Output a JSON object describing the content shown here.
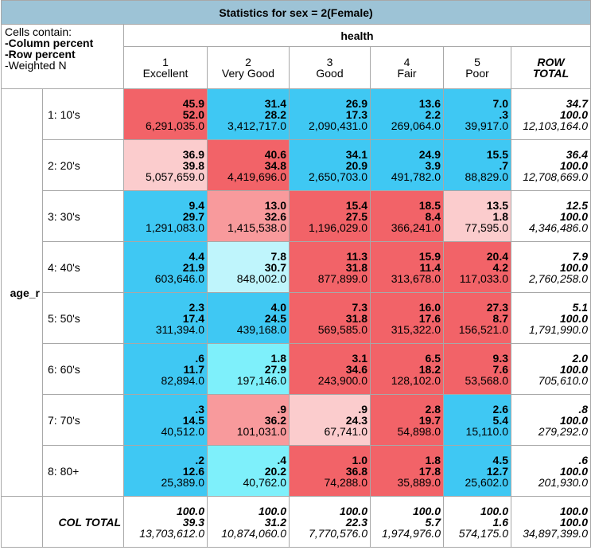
{
  "title": "Statistics for sex = 2(Female)",
  "legend": {
    "line1": "Cells contain:",
    "line2": "-Column percent",
    "line3": "-Row percent",
    "line4": "-Weighted N"
  },
  "col_var": "health",
  "row_var": "age_r",
  "columns": [
    {
      "num": "1",
      "label": "Excellent"
    },
    {
      "num": "2",
      "label": "Very Good"
    },
    {
      "num": "3",
      "label": "Good"
    },
    {
      "num": "4",
      "label": "Fair"
    },
    {
      "num": "5",
      "label": "Poor"
    }
  ],
  "row_total_header": {
    "line1": "ROW",
    "line2": "TOTAL"
  },
  "col_total_label": "COL TOTAL",
  "colors": {
    "blue": "#3fc8f3",
    "red": "#f26368",
    "lightred": "#fbcccd",
    "midred": "#f89a9c",
    "lightcyan": "#bff5fc",
    "cyan": "#7ef0fb",
    "white": "#ffffff"
  },
  "rows": [
    {
      "label": "1: 10's",
      "cells": [
        {
          "c": "45.9",
          "r": "52.0",
          "n": "6,291,035.0",
          "color": "red"
        },
        {
          "c": "31.4",
          "r": "28.2",
          "n": "3,412,717.0",
          "color": "blue"
        },
        {
          "c": "26.9",
          "r": "17.3",
          "n": "2,090,431.0",
          "color": "blue"
        },
        {
          "c": "13.6",
          "r": "2.2",
          "n": "269,064.0",
          "color": "blue"
        },
        {
          "c": "7.0",
          "r": ".3",
          "n": "39,917.0",
          "color": "blue"
        }
      ],
      "total": {
        "c": "34.7",
        "r": "100.0",
        "n": "12,103,164.0"
      }
    },
    {
      "label": "2: 20's",
      "cells": [
        {
          "c": "36.9",
          "r": "39.8",
          "n": "5,057,659.0",
          "color": "lightred"
        },
        {
          "c": "40.6",
          "r": "34.8",
          "n": "4,419,696.0",
          "color": "red"
        },
        {
          "c": "34.1",
          "r": "20.9",
          "n": "2,650,703.0",
          "color": "blue"
        },
        {
          "c": "24.9",
          "r": "3.9",
          "n": "491,782.0",
          "color": "blue"
        },
        {
          "c": "15.5",
          "r": ".7",
          "n": "88,829.0",
          "color": "blue"
        }
      ],
      "total": {
        "c": "36.4",
        "r": "100.0",
        "n": "12,708,669.0"
      }
    },
    {
      "label": "3: 30's",
      "cells": [
        {
          "c": "9.4",
          "r": "29.7",
          "n": "1,291,083.0",
          "color": "blue"
        },
        {
          "c": "13.0",
          "r": "32.6",
          "n": "1,415,538.0",
          "color": "midred"
        },
        {
          "c": "15.4",
          "r": "27.5",
          "n": "1,196,029.0",
          "color": "red"
        },
        {
          "c": "18.5",
          "r": "8.4",
          "n": "366,241.0",
          "color": "red"
        },
        {
          "c": "13.5",
          "r": "1.8",
          "n": "77,595.0",
          "color": "lightred"
        }
      ],
      "total": {
        "c": "12.5",
        "r": "100.0",
        "n": "4,346,486.0"
      }
    },
    {
      "label": "4: 40's",
      "cells": [
        {
          "c": "4.4",
          "r": "21.9",
          "n": "603,646.0",
          "color": "blue"
        },
        {
          "c": "7.8",
          "r": "30.7",
          "n": "848,002.0",
          "color": "lightcyan"
        },
        {
          "c": "11.3",
          "r": "31.8",
          "n": "877,899.0",
          "color": "red"
        },
        {
          "c": "15.9",
          "r": "11.4",
          "n": "313,678.0",
          "color": "red"
        },
        {
          "c": "20.4",
          "r": "4.2",
          "n": "117,033.0",
          "color": "red"
        }
      ],
      "total": {
        "c": "7.9",
        "r": "100.0",
        "n": "2,760,258.0"
      }
    },
    {
      "label": "5: 50's",
      "cells": [
        {
          "c": "2.3",
          "r": "17.4",
          "n": "311,394.0",
          "color": "blue"
        },
        {
          "c": "4.0",
          "r": "24.5",
          "n": "439,168.0",
          "color": "blue"
        },
        {
          "c": "7.3",
          "r": "31.8",
          "n": "569,585.0",
          "color": "red"
        },
        {
          "c": "16.0",
          "r": "17.6",
          "n": "315,322.0",
          "color": "red"
        },
        {
          "c": "27.3",
          "r": "8.7",
          "n": "156,521.0",
          "color": "red"
        }
      ],
      "total": {
        "c": "5.1",
        "r": "100.0",
        "n": "1,791,990.0"
      }
    },
    {
      "label": "6: 60's",
      "cells": [
        {
          "c": ".6",
          "r": "11.7",
          "n": "82,894.0",
          "color": "blue"
        },
        {
          "c": "1.8",
          "r": "27.9",
          "n": "197,146.0",
          "color": "cyan"
        },
        {
          "c": "3.1",
          "r": "34.6",
          "n": "243,900.0",
          "color": "red"
        },
        {
          "c": "6.5",
          "r": "18.2",
          "n": "128,102.0",
          "color": "red"
        },
        {
          "c": "9.3",
          "r": "7.6",
          "n": "53,568.0",
          "color": "red"
        }
      ],
      "total": {
        "c": "2.0",
        "r": "100.0",
        "n": "705,610.0"
      }
    },
    {
      "label": "7: 70's",
      "cells": [
        {
          "c": ".3",
          "r": "14.5",
          "n": "40,512.0",
          "color": "blue"
        },
        {
          "c": ".9",
          "r": "36.2",
          "n": "101,031.0",
          "color": "midred"
        },
        {
          "c": ".9",
          "r": "24.3",
          "n": "67,741.0",
          "color": "lightred"
        },
        {
          "c": "2.8",
          "r": "19.7",
          "n": "54,898.0",
          "color": "red"
        },
        {
          "c": "2.6",
          "r": "5.4",
          "n": "15,110.0",
          "color": "blue"
        }
      ],
      "total": {
        "c": ".8",
        "r": "100.0",
        "n": "279,292.0"
      }
    },
    {
      "label": "8: 80+",
      "cells": [
        {
          "c": ".2",
          "r": "12.6",
          "n": "25,389.0",
          "color": "blue"
        },
        {
          "c": ".4",
          "r": "20.2",
          "n": "40,762.0",
          "color": "cyan"
        },
        {
          "c": "1.0",
          "r": "36.8",
          "n": "74,288.0",
          "color": "red"
        },
        {
          "c": "1.8",
          "r": "17.8",
          "n": "35,889.0",
          "color": "red"
        },
        {
          "c": "4.5",
          "r": "12.7",
          "n": "25,602.0",
          "color": "blue"
        }
      ],
      "total": {
        "c": ".6",
        "r": "100.0",
        "n": "201,930.0"
      }
    }
  ],
  "col_totals": [
    {
      "c": "100.0",
      "r": "39.3",
      "n": "13,703,612.0"
    },
    {
      "c": "100.0",
      "r": "31.2",
      "n": "10,874,060.0"
    },
    {
      "c": "100.0",
      "r": "22.3",
      "n": "7,770,576.0"
    },
    {
      "c": "100.0",
      "r": "5.7",
      "n": "1,974,976.0"
    },
    {
      "c": "100.0",
      "r": "1.6",
      "n": "574,175.0"
    }
  ],
  "grand_total": {
    "c": "100.0",
    "r": "100.0",
    "n": "34,897,399.0"
  }
}
